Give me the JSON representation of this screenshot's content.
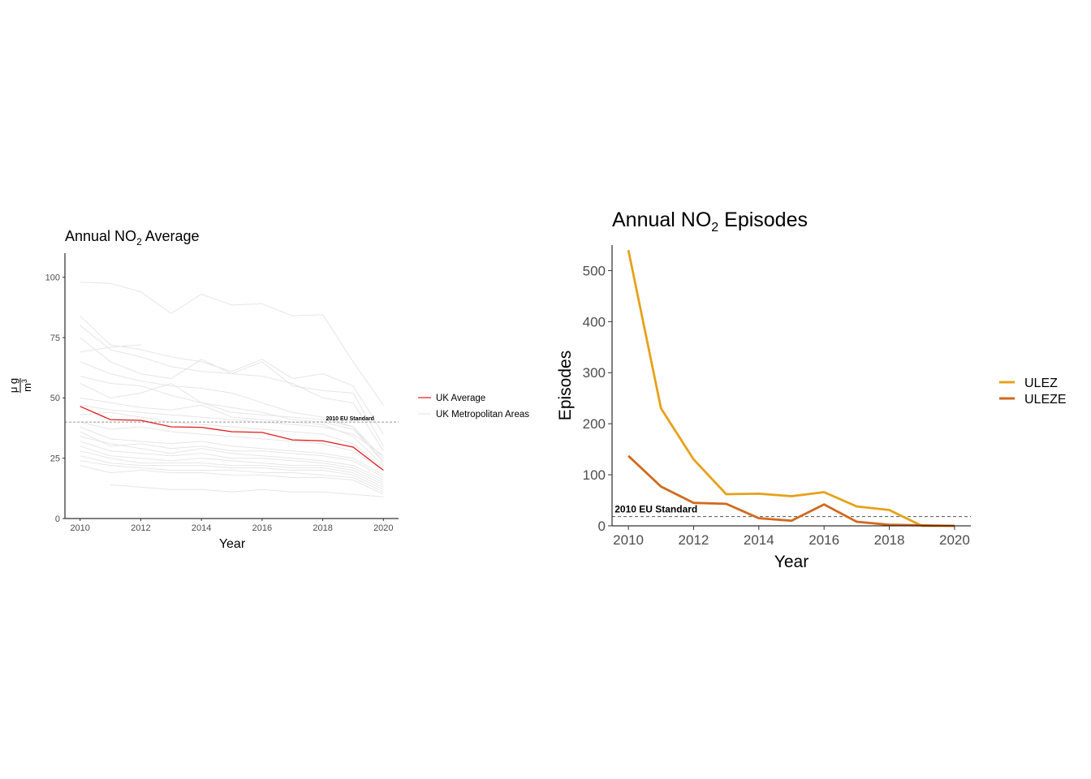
{
  "charts": [
    {
      "title": "Annual NO",
      "title_sub": "2",
      "title_suffix": " Average",
      "xlabel": "Year",
      "ylabel_num": "μ g",
      "ylabel_den": "m",
      "ylabel_den_sup": "3",
      "legend": [
        "UK Average",
        "UK Metropolitan Areas"
      ],
      "annotation": "2010 EU Standard"
    },
    {
      "title": "Annual NO",
      "title_sub": "2",
      "title_suffix": " Episodes",
      "xlabel": "Year",
      "ylabel": "Episodes",
      "legend": [
        "ULEZ",
        "ULEZE"
      ],
      "annotation": "2010 EU Standard"
    }
  ],
  "chart_data": [
    {
      "type": "line",
      "title": "Annual NO2 Average",
      "xlabel": "Year",
      "ylabel": "μg/m3",
      "xlim": [
        2009.5,
        2020.5
      ],
      "ylim": [
        0,
        110
      ],
      "xticks": [
        2010,
        2012,
        2014,
        2016,
        2018,
        2020
      ],
      "yticks": [
        0,
        25,
        50,
        75,
        100
      ],
      "reference_line": {
        "y": 40,
        "label": "2010 EU Standard",
        "style": "dashed"
      },
      "legend_placement": "right",
      "series": [
        {
          "name": "UK Average",
          "color": "#e31a1c",
          "x": [
            2010,
            2011,
            2012,
            2013,
            2014,
            2015,
            2016,
            2017,
            2018,
            2019,
            2020
          ],
          "y": [
            46.5,
            41,
            40.7,
            38,
            37.8,
            36,
            35.7,
            32.6,
            32.2,
            29.6,
            20
          ]
        }
      ],
      "background_series_name": "UK Metropolitan Areas",
      "background_color": "#e6e6e6",
      "background_series": [
        {
          "x": [
            2010,
            2011,
            2012,
            2013,
            2014,
            2015,
            2016,
            2017,
            2018,
            2019,
            2020
          ],
          "y": [
            98,
            97.5,
            94,
            85,
            93,
            88.5,
            89,
            84,
            84.5,
            65,
            47
          ]
        },
        {
          "x": [
            2010,
            2011,
            2012,
            2013,
            2014,
            2015,
            2016,
            2017,
            2018,
            2019,
            2020
          ],
          "y": [
            84,
            72,
            70,
            67,
            65,
            61,
            66,
            58,
            60,
            55,
            35
          ]
        },
        {
          "x": [
            2010,
            2011,
            2012,
            2013,
            2014,
            2015,
            2016,
            2017,
            2018,
            2019,
            2020
          ],
          "y": [
            80,
            70,
            67,
            63,
            61,
            60,
            65,
            55,
            53,
            52,
            30
          ]
        },
        {
          "x": [
            2010,
            2011,
            2012,
            2013,
            2014,
            2015,
            2016,
            2017,
            2018,
            2019,
            2020
          ],
          "y": [
            75,
            65,
            60,
            58,
            66,
            60,
            59,
            56,
            50,
            48,
            28
          ]
        },
        {
          "x": [
            2010,
            2011,
            2012
          ],
          "y": [
            69,
            71,
            72
          ]
        },
        {
          "x": [
            2010,
            2011,
            2012,
            2013,
            2014,
            2015,
            2016,
            2017,
            2018,
            2019,
            2020
          ],
          "y": [
            65,
            60,
            57,
            55,
            54,
            52,
            48,
            44,
            42,
            38,
            25
          ]
        },
        {
          "x": [
            2010,
            2011,
            2012,
            2013,
            2014,
            2015,
            2016,
            2017,
            2018,
            2019,
            2020
          ],
          "y": [
            59,
            56,
            55,
            51,
            48,
            46,
            44,
            41,
            40,
            37,
            24
          ]
        },
        {
          "x": [
            2010,
            2011,
            2012,
            2013,
            2014,
            2015,
            2016,
            2017,
            2018,
            2019,
            2020
          ],
          "y": [
            56,
            50,
            52,
            56,
            48,
            44,
            43,
            42,
            41,
            38,
            23
          ]
        },
        {
          "x": [
            2010,
            2011,
            2012,
            2013,
            2014,
            2015,
            2016,
            2017,
            2018,
            2019,
            2020
          ],
          "y": [
            50,
            48,
            46,
            45,
            47,
            42,
            41,
            40,
            39,
            34,
            22
          ]
        },
        {
          "x": [
            2010,
            2011,
            2012,
            2013,
            2014,
            2015,
            2016,
            2017,
            2018,
            2019,
            2020
          ],
          "y": [
            43,
            44,
            42,
            40,
            39,
            38,
            37,
            36,
            35,
            31,
            21
          ]
        },
        {
          "x": [
            2010,
            2011,
            2012,
            2013,
            2014,
            2015,
            2016,
            2017,
            2018,
            2019,
            2020
          ],
          "y": [
            40,
            37,
            38,
            36,
            35,
            34,
            33,
            32,
            31,
            28,
            20
          ]
        },
        {
          "x": [
            2010,
            2011,
            2012,
            2013,
            2014,
            2015,
            2016,
            2017,
            2018,
            2019,
            2020
          ],
          "y": [
            38,
            33,
            32,
            31,
            32,
            30,
            29,
            28,
            27,
            25,
            18
          ]
        },
        {
          "x": [
            2010,
            2011,
            2012,
            2013,
            2014,
            2015,
            2016,
            2017,
            2018,
            2019,
            2020
          ],
          "y": [
            36,
            30,
            31,
            29,
            30,
            28,
            28,
            27,
            26,
            24,
            17
          ]
        },
        {
          "x": [
            2010,
            2011,
            2012,
            2013,
            2014,
            2015,
            2016,
            2017,
            2018,
            2019,
            2020
          ],
          "y": [
            34,
            31,
            29,
            27,
            29,
            27,
            26,
            25,
            24,
            22,
            16
          ]
        },
        {
          "x": [
            2010,
            2011,
            2012,
            2013,
            2014,
            2015,
            2016,
            2017,
            2018,
            2019,
            2020
          ],
          "y": [
            32,
            28,
            27,
            26,
            27,
            25,
            25,
            24,
            23,
            21,
            15
          ]
        },
        {
          "x": [
            2010,
            2011,
            2012,
            2013,
            2014,
            2015,
            2016,
            2017,
            2018,
            2019,
            2020
          ],
          "y": [
            30,
            26,
            25,
            24,
            25,
            24,
            23,
            22,
            22,
            20,
            14
          ]
        },
        {
          "x": [
            2010,
            2011,
            2012,
            2013,
            2014,
            2015,
            2016,
            2017,
            2018,
            2019,
            2020
          ],
          "y": [
            28,
            25,
            23,
            23,
            23,
            22,
            22,
            21,
            21,
            19,
            13
          ]
        },
        {
          "x": [
            2010,
            2011,
            2012,
            2013,
            2014,
            2015,
            2016,
            2017,
            2018,
            2019,
            2020
          ],
          "y": [
            26,
            23,
            22,
            22,
            22,
            21,
            21,
            20,
            20,
            18,
            12
          ]
        },
        {
          "x": [
            2010,
            2011,
            2012,
            2013,
            2014,
            2015,
            2016,
            2017,
            2018,
            2019,
            2020
          ],
          "y": [
            24,
            22,
            21,
            20,
            20,
            20,
            19,
            19,
            18,
            17,
            11
          ]
        },
        {
          "x": [
            2010,
            2011,
            2012,
            2013,
            2014,
            2015,
            2016,
            2017,
            2018,
            2019,
            2020
          ],
          "y": [
            22,
            19,
            20,
            19,
            19,
            18,
            18,
            17,
            17,
            16,
            10
          ]
        },
        {
          "x": [
            2011,
            2012,
            2013,
            2014,
            2015,
            2016,
            2017,
            2018,
            2019,
            2020
          ],
          "y": [
            14,
            13,
            12,
            12,
            11,
            12,
            11,
            11,
            10,
            9
          ]
        },
        {
          "x": [
            2010,
            2011,
            2012,
            2013,
            2014,
            2015,
            2016,
            2017,
            2018,
            2019,
            2020
          ],
          "y": [
            47,
            45,
            44,
            43,
            42,
            41,
            40,
            39,
            38,
            35,
            26
          ]
        }
      ]
    },
    {
      "type": "line",
      "title": "Annual NO2 Episodes",
      "xlabel": "Year",
      "ylabel": "Episodes",
      "xlim": [
        2009.5,
        2020.5
      ],
      "ylim": [
        0,
        550
      ],
      "xticks": [
        2010,
        2012,
        2014,
        2016,
        2018,
        2020
      ],
      "yticks": [
        0,
        100,
        200,
        300,
        400,
        500
      ],
      "reference_line": {
        "y": 18,
        "label": "2010 EU Standard",
        "style": "dashed"
      },
      "legend_placement": "right",
      "series": [
        {
          "name": "ULEZ",
          "color": "#e6a11a",
          "x": [
            2010,
            2011,
            2012,
            2013,
            2014,
            2015,
            2016,
            2017,
            2018,
            2019,
            2020
          ],
          "y": [
            540,
            230,
            130,
            62,
            63,
            58,
            66,
            38,
            31,
            0,
            0
          ]
        },
        {
          "name": "ULEZE",
          "color": "#d2691e",
          "x": [
            2010,
            2011,
            2012,
            2013,
            2014,
            2015,
            2016,
            2017,
            2018,
            2019,
            2020
          ],
          "y": [
            137,
            77,
            45,
            43,
            15,
            10,
            42,
            8,
            2,
            1,
            0
          ]
        }
      ]
    }
  ]
}
